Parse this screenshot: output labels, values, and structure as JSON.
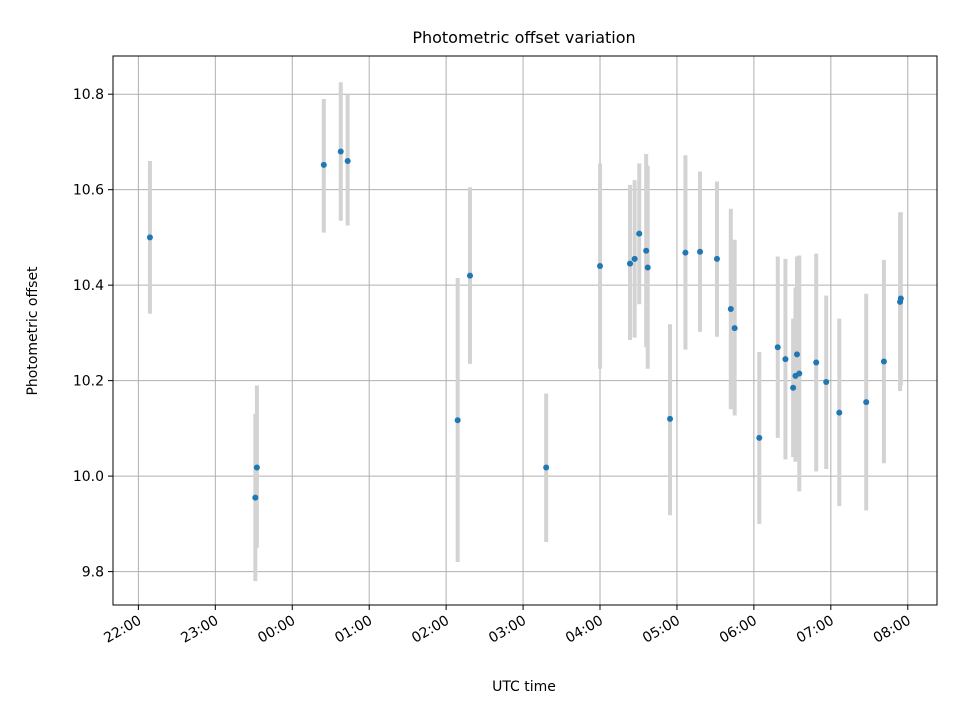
{
  "chart_data": {
    "type": "scatter",
    "title": "Photometric offset variation",
    "xlabel": "UTC time",
    "ylabel": "Photometric offset",
    "x_unit": "hours since 22:00 UTC",
    "xlim": [
      -0.33,
      10.38
    ],
    "ylim": [
      9.73,
      10.88
    ],
    "grid": true,
    "x_ticks": [
      {
        "value": 0,
        "label": "22:00"
      },
      {
        "value": 1,
        "label": "23:00"
      },
      {
        "value": 2,
        "label": "00:00"
      },
      {
        "value": 3,
        "label": "01:00"
      },
      {
        "value": 4,
        "label": "02:00"
      },
      {
        "value": 5,
        "label": "03:00"
      },
      {
        "value": 6,
        "label": "04:00"
      },
      {
        "value": 7,
        "label": "05:00"
      },
      {
        "value": 8,
        "label": "06:00"
      },
      {
        "value": 9,
        "label": "07:00"
      },
      {
        "value": 10,
        "label": "08:00"
      }
    ],
    "y_ticks": [
      {
        "value": 9.8,
        "label": "9.8"
      },
      {
        "value": 10.0,
        "label": "10.0"
      },
      {
        "value": 10.2,
        "label": "10.2"
      },
      {
        "value": 10.4,
        "label": "10.4"
      },
      {
        "value": 10.6,
        "label": "10.6"
      },
      {
        "value": 10.8,
        "label": "10.8"
      }
    ],
    "points": [
      {
        "x": 0.15,
        "y": 10.5,
        "lo": 10.34,
        "hi": 10.66
      },
      {
        "x": 1.52,
        "y": 9.955,
        "lo": 9.78,
        "hi": 10.13
      },
      {
        "x": 1.54,
        "y": 10.018,
        "lo": 9.85,
        "hi": 10.19
      },
      {
        "x": 2.41,
        "y": 10.652,
        "lo": 10.51,
        "hi": 10.79
      },
      {
        "x": 2.63,
        "y": 10.68,
        "lo": 10.535,
        "hi": 10.825
      },
      {
        "x": 2.72,
        "y": 10.66,
        "lo": 10.525,
        "hi": 10.8
      },
      {
        "x": 4.15,
        "y": 10.117,
        "lo": 9.82,
        "hi": 10.415
      },
      {
        "x": 4.31,
        "y": 10.42,
        "lo": 10.235,
        "hi": 10.605
      },
      {
        "x": 5.3,
        "y": 10.018,
        "lo": 9.862,
        "hi": 10.173
      },
      {
        "x": 6.0,
        "y": 10.44,
        "lo": 10.225,
        "hi": 10.655
      },
      {
        "x": 6.39,
        "y": 10.445,
        "lo": 10.285,
        "hi": 10.61
      },
      {
        "x": 6.45,
        "y": 10.455,
        "lo": 10.29,
        "hi": 10.62
      },
      {
        "x": 6.51,
        "y": 10.508,
        "lo": 10.36,
        "hi": 10.655
      },
      {
        "x": 6.6,
        "y": 10.472,
        "lo": 10.27,
        "hi": 10.675
      },
      {
        "x": 6.62,
        "y": 10.437,
        "lo": 10.225,
        "hi": 10.65
      },
      {
        "x": 6.91,
        "y": 10.12,
        "lo": 9.918,
        "hi": 10.318
      },
      {
        "x": 7.11,
        "y": 10.468,
        "lo": 10.265,
        "hi": 10.672
      },
      {
        "x": 7.3,
        "y": 10.47,
        "lo": 10.302,
        "hi": 10.638
      },
      {
        "x": 7.52,
        "y": 10.455,
        "lo": 10.292,
        "hi": 10.617
      },
      {
        "x": 7.7,
        "y": 10.35,
        "lo": 10.14,
        "hi": 10.56
      },
      {
        "x": 7.75,
        "y": 10.31,
        "lo": 10.127,
        "hi": 10.495
      },
      {
        "x": 8.07,
        "y": 10.08,
        "lo": 9.9,
        "hi": 10.26
      },
      {
        "x": 8.31,
        "y": 10.27,
        "lo": 10.08,
        "hi": 10.46
      },
      {
        "x": 8.41,
        "y": 10.245,
        "lo": 10.035,
        "hi": 10.455
      },
      {
        "x": 8.51,
        "y": 10.185,
        "lo": 10.04,
        "hi": 10.33
      },
      {
        "x": 8.54,
        "y": 10.21,
        "lo": 10.03,
        "hi": 10.395
      },
      {
        "x": 8.56,
        "y": 10.255,
        "lo": 10.05,
        "hi": 10.46
      },
      {
        "x": 8.59,
        "y": 10.215,
        "lo": 9.968,
        "hi": 10.462
      },
      {
        "x": 8.81,
        "y": 10.238,
        "lo": 10.01,
        "hi": 10.466
      },
      {
        "x": 8.94,
        "y": 10.197,
        "lo": 10.015,
        "hi": 10.378
      },
      {
        "x": 9.11,
        "y": 10.133,
        "lo": 9.937,
        "hi": 10.33
      },
      {
        "x": 9.46,
        "y": 10.155,
        "lo": 9.928,
        "hi": 10.382
      },
      {
        "x": 9.69,
        "y": 10.24,
        "lo": 10.027,
        "hi": 10.453
      },
      {
        "x": 9.9,
        "y": 10.365,
        "lo": 10.178,
        "hi": 10.552
      },
      {
        "x": 9.91,
        "y": 10.372,
        "lo": 10.19,
        "hi": 10.553
      }
    ]
  },
  "colors": {
    "point": "#1f77b4",
    "errorbar": "#d3d3d3",
    "grid": "#b0b0b0"
  }
}
